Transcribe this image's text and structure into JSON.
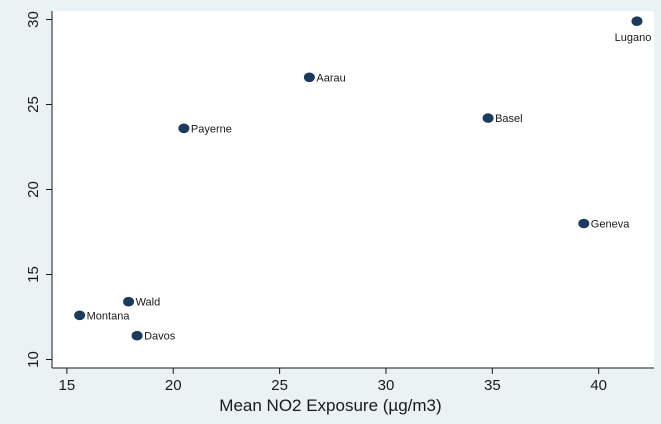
{
  "chart_data": {
    "type": "scatter",
    "xlabel": "Mean NO2 Exposure (µg/m3)",
    "ylabel": "",
    "xlim": [
      14.3,
      42.6
    ],
    "ylim": [
      9.5,
      30.5
    ],
    "x_ticks": [
      "15",
      "20",
      "25",
      "30",
      "35",
      "40"
    ],
    "y_ticks": [
      "10",
      "15",
      "20",
      "25",
      "30"
    ],
    "grid": false,
    "colors": {
      "marker": "#1b3a5c",
      "axis": "#1a1a1a",
      "plot_bg": "#ffffff",
      "outer_bg": "#eaf2f3"
    },
    "points": [
      {
        "label": "Lugano",
        "x": 41.8,
        "y": 29.9
      },
      {
        "label": "Aarau",
        "x": 26.4,
        "y": 26.6
      },
      {
        "label": "Payerne",
        "x": 20.5,
        "y": 23.6
      },
      {
        "label": "Basel",
        "x": 34.8,
        "y": 24.2
      },
      {
        "label": "Geneva",
        "x": 39.3,
        "y": 18.0
      },
      {
        "label": "Wald",
        "x": 17.9,
        "y": 13.4
      },
      {
        "label": "Montana",
        "x": 15.6,
        "y": 12.6
      },
      {
        "label": "Davos",
        "x": 18.3,
        "y": 11.4
      }
    ]
  }
}
